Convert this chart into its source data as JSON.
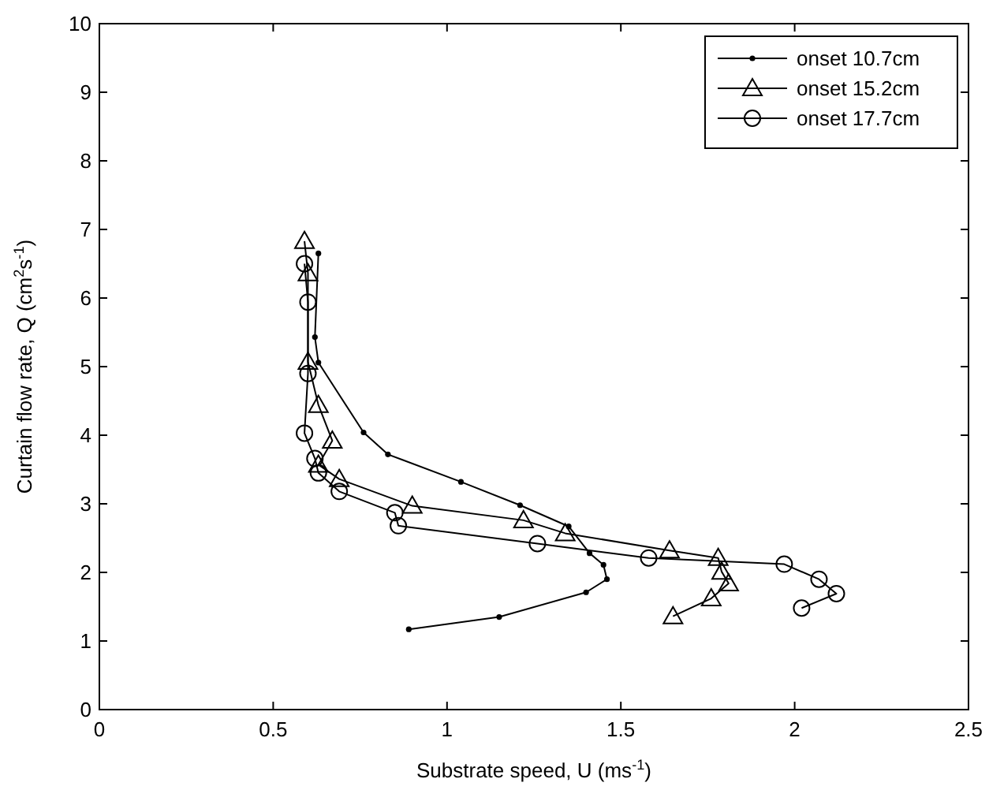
{
  "chart_data": {
    "type": "line",
    "xlabel": "Substrate speed, U (ms$^{-1}$)",
    "ylabel": "Curtain flow rate, Q (cm$^{2}$s$^{-1}$)",
    "xlim": [
      0,
      2.5
    ],
    "xticks": [
      0,
      0.5,
      1,
      1.5,
      2,
      2.5
    ],
    "ylim": [
      0,
      10
    ],
    "yticks": [
      0,
      1,
      2,
      3,
      4,
      5,
      6,
      7,
      8,
      9,
      10
    ],
    "grid": false,
    "legend": "top right",
    "line_style": "solid",
    "series": [
      {
        "name": "onset 10.7cm",
        "color": "#000000",
        "marker": "dot",
        "x": [
          0.63,
          0.62,
          0.63,
          0.76,
          0.83,
          1.04,
          1.21,
          1.35,
          1.41,
          1.45,
          1.46,
          1.4,
          1.15,
          0.89
        ],
        "values": [
          6.65,
          5.43,
          5.06,
          4.04,
          3.72,
          3.32,
          2.98,
          2.67,
          2.28,
          2.11,
          1.9,
          1.71,
          1.35,
          1.17
        ]
      },
      {
        "name": "onset 15.2cm",
        "color": "#000000",
        "marker": "triangle",
        "x": [
          0.59,
          0.6,
          0.6,
          0.63,
          0.67,
          0.63,
          0.69,
          0.9,
          1.22,
          1.34,
          1.64,
          1.78,
          1.79,
          1.81,
          1.76,
          1.65
        ],
        "values": [
          6.83,
          6.36,
          5.07,
          4.44,
          3.92,
          3.57,
          3.36,
          2.97,
          2.76,
          2.57,
          2.32,
          2.21,
          2.01,
          1.84,
          1.62,
          1.36
        ]
      },
      {
        "name": "onset 17.7cm",
        "color": "#000000",
        "marker": "circle",
        "x": [
          0.59,
          0.6,
          0.6,
          0.59,
          0.62,
          0.63,
          0.69,
          0.85,
          0.86,
          1.26,
          1.58,
          1.97,
          2.07,
          2.12,
          2.02
        ],
        "values": [
          6.5,
          5.94,
          4.9,
          4.03,
          3.66,
          3.45,
          3.18,
          2.87,
          2.68,
          2.42,
          2.21,
          2.12,
          1.9,
          1.69,
          1.48
        ]
      }
    ]
  }
}
